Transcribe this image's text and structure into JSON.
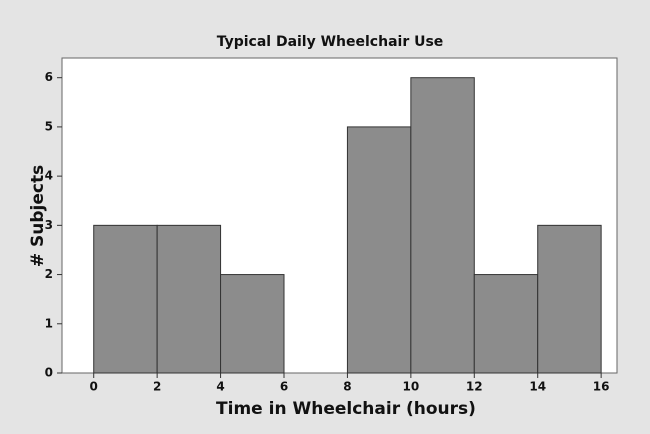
{
  "chart_data": {
    "type": "histogram",
    "title": "Typical Daily Wheelchair Use",
    "x_label": "Time in Wheelchair (hours)",
    "y_label": "# Subjects",
    "bins": [
      0,
      2,
      4,
      6,
      8,
      10,
      12,
      14,
      16
    ],
    "values": [
      3,
      3,
      2,
      0,
      5,
      6,
      2,
      3
    ],
    "color": "#8c8c8c",
    "xlim": [
      -1,
      16.5
    ],
    "xticks": [
      0,
      2,
      4,
      6,
      8,
      10,
      12,
      14,
      16
    ],
    "ylim": [
      0,
      6.4
    ],
    "yticks": [
      0,
      1,
      2,
      3,
      4,
      5,
      6
    ]
  }
}
